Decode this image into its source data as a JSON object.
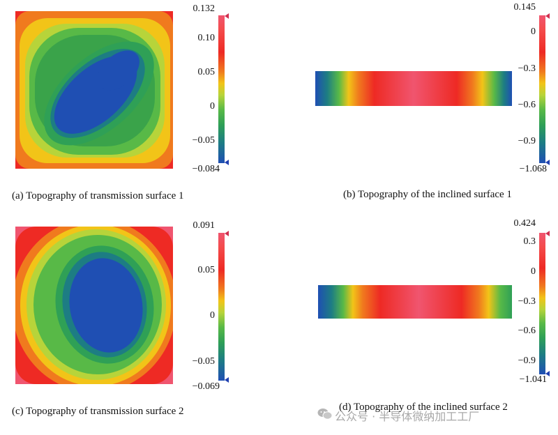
{
  "panels": {
    "a": {
      "caption": "(a) Topography of transmission surface 1",
      "scale_max": "0.132",
      "scale_min": "−0.084",
      "ticks": [
        "0.10",
        "0.05",
        "0",
        "−0.05"
      ]
    },
    "b": {
      "caption": "(b) Topography of the inclined surface 1",
      "scale_max": "0.145",
      "scale_min": "−1.068",
      "ticks": [
        "0",
        "−0.3",
        "−0.6",
        "−0.9"
      ]
    },
    "c": {
      "caption": "(c) Topography of transmission surface 2",
      "scale_max": "0.091",
      "scale_min": "−0.069",
      "ticks": [
        "0.05",
        "0",
        "−0.05"
      ]
    },
    "d": {
      "caption": "(d) Topography of the inclined surface 2",
      "scale_max": "0.424",
      "scale_min": "−1.041",
      "ticks": [
        "0.3",
        "0",
        "−0.3",
        "−0.6",
        "−0.9"
      ]
    }
  },
  "watermark": {
    "text": "公众号 · 半导体微纳加工工厂",
    "icon": "wechat-icon"
  },
  "colors": {
    "red": "#ee2a24",
    "yellow": "#f2c418",
    "green": "#58b947",
    "blue": "#1f4fb3"
  }
}
